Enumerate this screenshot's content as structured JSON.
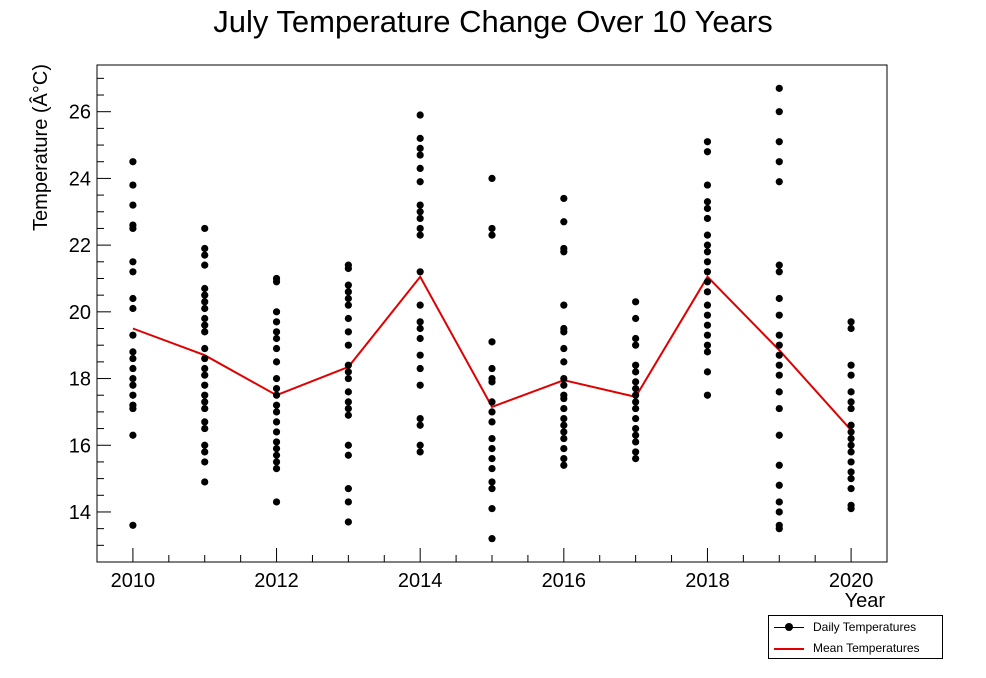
{
  "chart_data": {
    "type": "scatter",
    "title": "July Temperature Change Over 10 Years",
    "xlabel": "Year",
    "ylabel": "Temperature (Â°C)",
    "xlim": [
      2009.5,
      2020.5
    ],
    "ylim": [
      12.5,
      27.4
    ],
    "x_ticks": [
      2010,
      2012,
      2014,
      2016,
      2018,
      2020
    ],
    "y_ticks": [
      14,
      16,
      18,
      20,
      22,
      24,
      26
    ],
    "legend_position": "bottom-right",
    "series": [
      {
        "name": "Daily Temperatures",
        "kind": "scatter",
        "color": "#000000",
        "points": [
          [
            2010,
            24.5
          ],
          [
            2010,
            23.8
          ],
          [
            2010,
            23.2
          ],
          [
            2010,
            22.6
          ],
          [
            2010,
            22.5
          ],
          [
            2010,
            21.5
          ],
          [
            2010,
            21.2
          ],
          [
            2010,
            20.4
          ],
          [
            2010,
            20.1
          ],
          [
            2010,
            19.3
          ],
          [
            2010,
            18.8
          ],
          [
            2010,
            18.6
          ],
          [
            2010,
            18.3
          ],
          [
            2010,
            18.0
          ],
          [
            2010,
            17.8
          ],
          [
            2010,
            17.5
          ],
          [
            2010,
            17.2
          ],
          [
            2010,
            17.1
          ],
          [
            2010,
            16.3
          ],
          [
            2010,
            13.6
          ],
          [
            2011,
            22.5
          ],
          [
            2011,
            21.9
          ],
          [
            2011,
            21.7
          ],
          [
            2011,
            21.4
          ],
          [
            2011,
            20.7
          ],
          [
            2011,
            20.5
          ],
          [
            2011,
            20.3
          ],
          [
            2011,
            20.1
          ],
          [
            2011,
            19.8
          ],
          [
            2011,
            19.6
          ],
          [
            2011,
            19.4
          ],
          [
            2011,
            18.9
          ],
          [
            2011,
            18.6
          ],
          [
            2011,
            18.3
          ],
          [
            2011,
            18.1
          ],
          [
            2011,
            17.8
          ],
          [
            2011,
            17.5
          ],
          [
            2011,
            17.3
          ],
          [
            2011,
            17.1
          ],
          [
            2011,
            16.7
          ],
          [
            2011,
            16.5
          ],
          [
            2011,
            16.0
          ],
          [
            2011,
            15.8
          ],
          [
            2011,
            15.5
          ],
          [
            2011,
            14.9
          ],
          [
            2012,
            21.0
          ],
          [
            2012,
            20.9
          ],
          [
            2012,
            20.0
          ],
          [
            2012,
            19.7
          ],
          [
            2012,
            19.4
          ],
          [
            2012,
            19.2
          ],
          [
            2012,
            18.9
          ],
          [
            2012,
            18.5
          ],
          [
            2012,
            18.0
          ],
          [
            2012,
            17.7
          ],
          [
            2012,
            17.5
          ],
          [
            2012,
            17.2
          ],
          [
            2012,
            17.0
          ],
          [
            2012,
            16.7
          ],
          [
            2012,
            16.4
          ],
          [
            2012,
            16.1
          ],
          [
            2012,
            15.9
          ],
          [
            2012,
            15.7
          ],
          [
            2012,
            15.5
          ],
          [
            2012,
            15.3
          ],
          [
            2012,
            14.3
          ],
          [
            2013,
            21.4
          ],
          [
            2013,
            21.3
          ],
          [
            2013,
            20.8
          ],
          [
            2013,
            20.6
          ],
          [
            2013,
            20.4
          ],
          [
            2013,
            20.2
          ],
          [
            2013,
            19.8
          ],
          [
            2013,
            19.4
          ],
          [
            2013,
            19.0
          ],
          [
            2013,
            18.4
          ],
          [
            2013,
            18.2
          ],
          [
            2013,
            18.0
          ],
          [
            2013,
            17.6
          ],
          [
            2013,
            17.3
          ],
          [
            2013,
            17.1
          ],
          [
            2013,
            16.9
          ],
          [
            2013,
            16.0
          ],
          [
            2013,
            15.7
          ],
          [
            2013,
            14.7
          ],
          [
            2013,
            14.3
          ],
          [
            2013,
            13.7
          ],
          [
            2014,
            25.9
          ],
          [
            2014,
            25.2
          ],
          [
            2014,
            24.9
          ],
          [
            2014,
            24.7
          ],
          [
            2014,
            24.3
          ],
          [
            2014,
            23.9
          ],
          [
            2014,
            23.2
          ],
          [
            2014,
            23.0
          ],
          [
            2014,
            22.8
          ],
          [
            2014,
            22.5
          ],
          [
            2014,
            22.3
          ],
          [
            2014,
            21.2
          ],
          [
            2014,
            20.2
          ],
          [
            2014,
            19.7
          ],
          [
            2014,
            19.5
          ],
          [
            2014,
            19.2
          ],
          [
            2014,
            18.7
          ],
          [
            2014,
            18.3
          ],
          [
            2014,
            17.8
          ],
          [
            2014,
            16.8
          ],
          [
            2014,
            16.6
          ],
          [
            2014,
            16.0
          ],
          [
            2014,
            15.8
          ],
          [
            2015,
            24.0
          ],
          [
            2015,
            22.5
          ],
          [
            2015,
            22.3
          ],
          [
            2015,
            19.1
          ],
          [
            2015,
            18.3
          ],
          [
            2015,
            18.0
          ],
          [
            2015,
            17.9
          ],
          [
            2015,
            17.3
          ],
          [
            2015,
            17.0
          ],
          [
            2015,
            16.7
          ],
          [
            2015,
            16.2
          ],
          [
            2015,
            15.9
          ],
          [
            2015,
            15.6
          ],
          [
            2015,
            15.3
          ],
          [
            2015,
            14.9
          ],
          [
            2015,
            14.7
          ],
          [
            2015,
            14.1
          ],
          [
            2015,
            13.2
          ],
          [
            2016,
            23.4
          ],
          [
            2016,
            22.7
          ],
          [
            2016,
            21.9
          ],
          [
            2016,
            21.8
          ],
          [
            2016,
            20.2
          ],
          [
            2016,
            19.5
          ],
          [
            2016,
            19.4
          ],
          [
            2016,
            18.9
          ],
          [
            2016,
            18.5
          ],
          [
            2016,
            18.0
          ],
          [
            2016,
            17.8
          ],
          [
            2016,
            17.5
          ],
          [
            2016,
            17.4
          ],
          [
            2016,
            17.1
          ],
          [
            2016,
            16.8
          ],
          [
            2016,
            16.6
          ],
          [
            2016,
            16.4
          ],
          [
            2016,
            16.2
          ],
          [
            2016,
            15.9
          ],
          [
            2016,
            15.6
          ],
          [
            2016,
            15.4
          ],
          [
            2017,
            20.3
          ],
          [
            2017,
            19.8
          ],
          [
            2017,
            19.2
          ],
          [
            2017,
            19.0
          ],
          [
            2017,
            18.4
          ],
          [
            2017,
            18.2
          ],
          [
            2017,
            17.9
          ],
          [
            2017,
            17.7
          ],
          [
            2017,
            17.5
          ],
          [
            2017,
            17.3
          ],
          [
            2017,
            17.1
          ],
          [
            2017,
            16.8
          ],
          [
            2017,
            16.5
          ],
          [
            2017,
            16.3
          ],
          [
            2017,
            16.1
          ],
          [
            2017,
            15.8
          ],
          [
            2017,
            15.6
          ],
          [
            2018,
            25.1
          ],
          [
            2018,
            24.8
          ],
          [
            2018,
            23.8
          ],
          [
            2018,
            23.3
          ],
          [
            2018,
            23.1
          ],
          [
            2018,
            22.8
          ],
          [
            2018,
            22.3
          ],
          [
            2018,
            22.0
          ],
          [
            2018,
            21.8
          ],
          [
            2018,
            21.5
          ],
          [
            2018,
            21.2
          ],
          [
            2018,
            20.9
          ],
          [
            2018,
            20.6
          ],
          [
            2018,
            20.2
          ],
          [
            2018,
            19.9
          ],
          [
            2018,
            19.6
          ],
          [
            2018,
            19.3
          ],
          [
            2018,
            19.0
          ],
          [
            2018,
            18.8
          ],
          [
            2018,
            18.2
          ],
          [
            2018,
            17.5
          ],
          [
            2019,
            26.7
          ],
          [
            2019,
            26.0
          ],
          [
            2019,
            25.1
          ],
          [
            2019,
            24.5
          ],
          [
            2019,
            23.9
          ],
          [
            2019,
            21.4
          ],
          [
            2019,
            21.2
          ],
          [
            2019,
            20.4
          ],
          [
            2019,
            19.9
          ],
          [
            2019,
            19.3
          ],
          [
            2019,
            19.0
          ],
          [
            2019,
            18.7
          ],
          [
            2019,
            18.4
          ],
          [
            2019,
            18.1
          ],
          [
            2019,
            17.6
          ],
          [
            2019,
            17.1
          ],
          [
            2019,
            16.3
          ],
          [
            2019,
            15.4
          ],
          [
            2019,
            14.8
          ],
          [
            2019,
            14.3
          ],
          [
            2019,
            14.0
          ],
          [
            2019,
            13.6
          ],
          [
            2019,
            13.5
          ],
          [
            2020,
            19.7
          ],
          [
            2020,
            19.5
          ],
          [
            2020,
            18.4
          ],
          [
            2020,
            18.1
          ],
          [
            2020,
            17.6
          ],
          [
            2020,
            17.3
          ],
          [
            2020,
            17.1
          ],
          [
            2020,
            16.6
          ],
          [
            2020,
            16.4
          ],
          [
            2020,
            16.2
          ],
          [
            2020,
            16.0
          ],
          [
            2020,
            15.8
          ],
          [
            2020,
            15.5
          ],
          [
            2020,
            15.2
          ],
          [
            2020,
            15.0
          ],
          [
            2020,
            14.7
          ],
          [
            2020,
            14.2
          ],
          [
            2020,
            14.1
          ]
        ]
      },
      {
        "name": "Mean Temperatures",
        "kind": "line",
        "color": "#e00000",
        "x": [
          2010,
          2011,
          2012,
          2013,
          2014,
          2015,
          2016,
          2017,
          2018,
          2019,
          2020
        ],
        "values": [
          19.5,
          18.7,
          17.5,
          18.35,
          21.05,
          17.15,
          17.95,
          17.45,
          21.05,
          18.85,
          16.45
        ]
      }
    ]
  }
}
